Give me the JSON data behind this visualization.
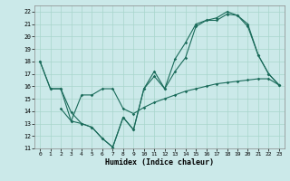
{
  "xlabel": "Humidex (Indice chaleur)",
  "bg_color": "#cbe9e9",
  "line_color": "#1a6b5a",
  "xlim": [
    -0.5,
    23.5
  ],
  "ylim": [
    11,
    22.5
  ],
  "xticks": [
    0,
    1,
    2,
    3,
    4,
    5,
    6,
    7,
    8,
    9,
    10,
    11,
    12,
    13,
    14,
    15,
    16,
    17,
    18,
    19,
    20,
    21,
    22,
    23
  ],
  "yticks": [
    11,
    12,
    13,
    14,
    15,
    16,
    17,
    18,
    19,
    20,
    21,
    22
  ],
  "series1_x": [
    0,
    1,
    2,
    3,
    4,
    5,
    6,
    7,
    8,
    9,
    10,
    11,
    12,
    13,
    14,
    15,
    16,
    17,
    18,
    19,
    20,
    21,
    22,
    23
  ],
  "series1_y": [
    18,
    15.8,
    15.8,
    13.9,
    13.0,
    12.7,
    11.8,
    11.1,
    13.5,
    12.5,
    15.8,
    17.2,
    15.8,
    18.2,
    19.5,
    21.0,
    21.3,
    21.3,
    21.8,
    21.7,
    21.0,
    18.5,
    17.0,
    16.1
  ],
  "series2_x": [
    2,
    3,
    4,
    5,
    6,
    7,
    8,
    9,
    10,
    11,
    12,
    13,
    14,
    15,
    16,
    17,
    18,
    19,
    20,
    21,
    22,
    23
  ],
  "series2_y": [
    14.2,
    13.2,
    15.3,
    15.3,
    15.8,
    15.8,
    14.2,
    13.8,
    14.3,
    14.7,
    15.0,
    15.3,
    15.6,
    15.8,
    16.0,
    16.2,
    16.3,
    16.4,
    16.5,
    16.6,
    16.6,
    16.1
  ],
  "series3_x": [
    0,
    1,
    2,
    3,
    4,
    5,
    6,
    7,
    8,
    9,
    10,
    11,
    12,
    13,
    14,
    15,
    16,
    17,
    18,
    19,
    20,
    21,
    22,
    23
  ],
  "series3_y": [
    18,
    15.8,
    15.8,
    13.2,
    13.0,
    12.7,
    11.8,
    11.1,
    13.5,
    12.5,
    15.8,
    16.8,
    15.8,
    17.2,
    18.3,
    20.8,
    21.3,
    21.5,
    22.0,
    21.7,
    20.8,
    18.5,
    17.0,
    16.1
  ]
}
